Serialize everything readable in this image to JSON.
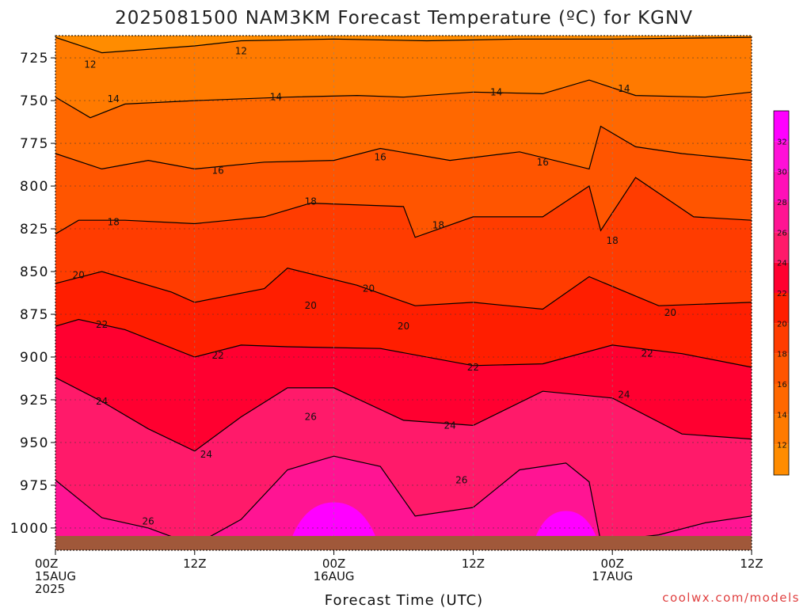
{
  "chart_data": {
    "type": "heatmap",
    "title": "2025081500 NAM3KM Forecast Temperature (ºC) for KGNV",
    "xlabel": "Forecast Time (UTC)",
    "ylabel": "",
    "x_range_hours": [
      0,
      60
    ],
    "y_range_hpa": [
      1013,
      712
    ],
    "y_reversed": true,
    "y_ticks": [
      725,
      750,
      775,
      800,
      825,
      850,
      875,
      900,
      925,
      950,
      975,
      1000
    ],
    "x_ticks": [
      {
        "hour": 0,
        "lines": [
          "00Z",
          "15AUG",
          "2025"
        ]
      },
      {
        "hour": 12,
        "lines": [
          "12Z"
        ]
      },
      {
        "hour": 24,
        "lines": [
          "00Z",
          "16AUG"
        ]
      },
      {
        "hour": 36,
        "lines": [
          "12Z"
        ]
      },
      {
        "hour": 48,
        "lines": [
          "00Z",
          "17AUG"
        ]
      },
      {
        "hour": 60,
        "lines": [
          "12Z"
        ]
      }
    ],
    "grid": true,
    "colorbar": {
      "ticks": [
        12,
        14,
        16,
        18,
        20,
        22,
        24,
        26,
        28,
        30,
        32
      ],
      "range": [
        10,
        34
      ],
      "colors": [
        "#ff8c00",
        "#ff7a00",
        "#ff6800",
        "#ff5500",
        "#ff3c00",
        "#ff1e00",
        "#ff0030",
        "#ff1a6a",
        "#ff1493",
        "#ff10b8",
        "#ff10d8",
        "#ff00ff"
      ],
      "placement": "right"
    },
    "contour_levels": [
      12,
      14,
      16,
      18,
      20,
      22,
      24,
      26
    ],
    "contour_pressure_hpa": {
      "12": [
        {
          "hour": 0,
          "p": 713
        },
        {
          "hour": 4,
          "p": 722
        },
        {
          "hour": 12,
          "p": 718
        },
        {
          "hour": 16,
          "p": 715
        },
        {
          "hour": 24,
          "p": 714
        },
        {
          "hour": 32,
          "p": 715
        },
        {
          "hour": 40,
          "p": 714
        },
        {
          "hour": 48,
          "p": 714
        },
        {
          "hour": 60,
          "p": 713
        }
      ],
      "14": [
        {
          "hour": 0,
          "p": 748
        },
        {
          "hour": 3,
          "p": 760
        },
        {
          "hour": 6,
          "p": 752
        },
        {
          "hour": 12,
          "p": 750
        },
        {
          "hour": 20,
          "p": 748
        },
        {
          "hour": 26,
          "p": 747
        },
        {
          "hour": 30,
          "p": 748
        },
        {
          "hour": 36,
          "p": 745
        },
        {
          "hour": 42,
          "p": 746
        },
        {
          "hour": 46,
          "p": 738
        },
        {
          "hour": 50,
          "p": 747
        },
        {
          "hour": 56,
          "p": 748
        },
        {
          "hour": 60,
          "p": 745
        }
      ],
      "16": [
        {
          "hour": 0,
          "p": 781
        },
        {
          "hour": 4,
          "p": 790
        },
        {
          "hour": 8,
          "p": 785
        },
        {
          "hour": 12,
          "p": 790
        },
        {
          "hour": 18,
          "p": 786
        },
        {
          "hour": 24,
          "p": 785
        },
        {
          "hour": 28,
          "p": 778
        },
        {
          "hour": 34,
          "p": 785
        },
        {
          "hour": 40,
          "p": 780
        },
        {
          "hour": 46,
          "p": 790
        },
        {
          "hour": 47,
          "p": 765
        },
        {
          "hour": 50,
          "p": 777
        },
        {
          "hour": 54,
          "p": 781
        },
        {
          "hour": 60,
          "p": 785
        }
      ],
      "18": [
        {
          "hour": 0,
          "p": 828
        },
        {
          "hour": 2,
          "p": 820
        },
        {
          "hour": 6,
          "p": 820
        },
        {
          "hour": 12,
          "p": 822
        },
        {
          "hour": 18,
          "p": 818
        },
        {
          "hour": 22,
          "p": 810
        },
        {
          "hour": 30,
          "p": 812
        },
        {
          "hour": 31,
          "p": 830
        },
        {
          "hour": 36,
          "p": 818
        },
        {
          "hour": 42,
          "p": 818
        },
        {
          "hour": 46,
          "p": 800
        },
        {
          "hour": 47,
          "p": 826
        },
        {
          "hour": 50,
          "p": 795
        },
        {
          "hour": 55,
          "p": 818
        },
        {
          "hour": 60,
          "p": 820
        }
      ],
      "20": [
        {
          "hour": 0,
          "p": 857
        },
        {
          "hour": 4,
          "p": 850
        },
        {
          "hour": 10,
          "p": 862
        },
        {
          "hour": 12,
          "p": 868
        },
        {
          "hour": 18,
          "p": 860
        },
        {
          "hour": 20,
          "p": 848
        },
        {
          "hour": 26,
          "p": 858
        },
        {
          "hour": 31,
          "p": 870
        },
        {
          "hour": 36,
          "p": 868
        },
        {
          "hour": 42,
          "p": 872
        },
        {
          "hour": 46,
          "p": 853
        },
        {
          "hour": 52,
          "p": 870
        },
        {
          "hour": 60,
          "p": 868
        }
      ],
      "22": [
        {
          "hour": 0,
          "p": 882
        },
        {
          "hour": 2,
          "p": 878
        },
        {
          "hour": 6,
          "p": 884
        },
        {
          "hour": 12,
          "p": 900
        },
        {
          "hour": 16,
          "p": 893
        },
        {
          "hour": 20,
          "p": 894
        },
        {
          "hour": 28,
          "p": 895
        },
        {
          "hour": 36,
          "p": 905
        },
        {
          "hour": 42,
          "p": 904
        },
        {
          "hour": 48,
          "p": 893
        },
        {
          "hour": 54,
          "p": 898
        },
        {
          "hour": 60,
          "p": 906
        }
      ],
      "24": [
        {
          "hour": 0,
          "p": 912
        },
        {
          "hour": 4,
          "p": 926
        },
        {
          "hour": 8,
          "p": 942
        },
        {
          "hour": 12,
          "p": 955
        },
        {
          "hour": 16,
          "p": 935
        },
        {
          "hour": 20,
          "p": 918
        },
        {
          "hour": 24,
          "p": 918
        },
        {
          "hour": 30,
          "p": 937
        },
        {
          "hour": 36,
          "p": 940
        },
        {
          "hour": 42,
          "p": 920
        },
        {
          "hour": 48,
          "p": 924
        },
        {
          "hour": 54,
          "p": 945
        },
        {
          "hour": 60,
          "p": 948
        }
      ],
      "26": [
        {
          "hour": 0,
          "p": 972
        },
        {
          "hour": 4,
          "p": 994
        },
        {
          "hour": 8,
          "p": 1000
        },
        {
          "hour": 12,
          "p": 1010
        },
        {
          "hour": 16,
          "p": 995
        },
        {
          "hour": 20,
          "p": 966
        },
        {
          "hour": 24,
          "p": 958
        },
        {
          "hour": 28,
          "p": 964
        },
        {
          "hour": 31,
          "p": 993
        },
        {
          "hour": 36,
          "p": 988
        },
        {
          "hour": 40,
          "p": 966
        },
        {
          "hour": 44,
          "p": 962
        },
        {
          "hour": 46,
          "p": 973
        },
        {
          "hour": 47,
          "p": 1008
        },
        {
          "hour": 52,
          "p": 1004
        },
        {
          "hour": 56,
          "p": 997
        },
        {
          "hour": 60,
          "p": 993
        }
      ]
    },
    "contour_labels": [
      {
        "text": "12",
        "hour": 3,
        "p": 729
      },
      {
        "text": "12",
        "hour": 16,
        "p": 721
      },
      {
        "text": "14",
        "hour": 5,
        "p": 749
      },
      {
        "text": "14",
        "hour": 19,
        "p": 748
      },
      {
        "text": "14",
        "hour": 38,
        "p": 745
      },
      {
        "text": "14",
        "hour": 49,
        "p": 743
      },
      {
        "text": "16",
        "hour": 14,
        "p": 791
      },
      {
        "text": "16",
        "hour": 28,
        "p": 783
      },
      {
        "text": "16",
        "hour": 42,
        "p": 786
      },
      {
        "text": "18",
        "hour": 5,
        "p": 821
      },
      {
        "text": "18",
        "hour": 22,
        "p": 809
      },
      {
        "text": "18",
        "hour": 33,
        "p": 823
      },
      {
        "text": "18",
        "hour": 48,
        "p": 832
      },
      {
        "text": "20",
        "hour": 2,
        "p": 852
      },
      {
        "text": "20",
        "hour": 22,
        "p": 870
      },
      {
        "text": "20",
        "hour": 27,
        "p": 860
      },
      {
        "text": "20",
        "hour": 30,
        "p": 882
      },
      {
        "text": "20",
        "hour": 53,
        "p": 874
      },
      {
        "text": "22",
        "hour": 4,
        "p": 881
      },
      {
        "text": "22",
        "hour": 14,
        "p": 899
      },
      {
        "text": "22",
        "hour": 36,
        "p": 906
      },
      {
        "text": "22",
        "hour": 51,
        "p": 898
      },
      {
        "text": "24",
        "hour": 4,
        "p": 926
      },
      {
        "text": "24",
        "hour": 13,
        "p": 957
      },
      {
        "text": "24",
        "hour": 34,
        "p": 940
      },
      {
        "text": "24",
        "hour": 49,
        "p": 922
      },
      {
        "text": "26",
        "hour": 8,
        "p": 996
      },
      {
        "text": "26",
        "hour": 22,
        "p": 935
      },
      {
        "text": "26",
        "hour": 35,
        "p": 972
      }
    ],
    "warm_core_regions": [
      {
        "value": 32,
        "hour_center": 24,
        "hour_halfwidth": 4,
        "p_top": 985
      },
      {
        "value": 32,
        "hour_center": 44,
        "hour_halfwidth": 3,
        "p_top": 990
      }
    ],
    "ground": {
      "color": "#a0583a"
    }
  },
  "footer": {
    "watermark": "coolwx.com/models"
  }
}
